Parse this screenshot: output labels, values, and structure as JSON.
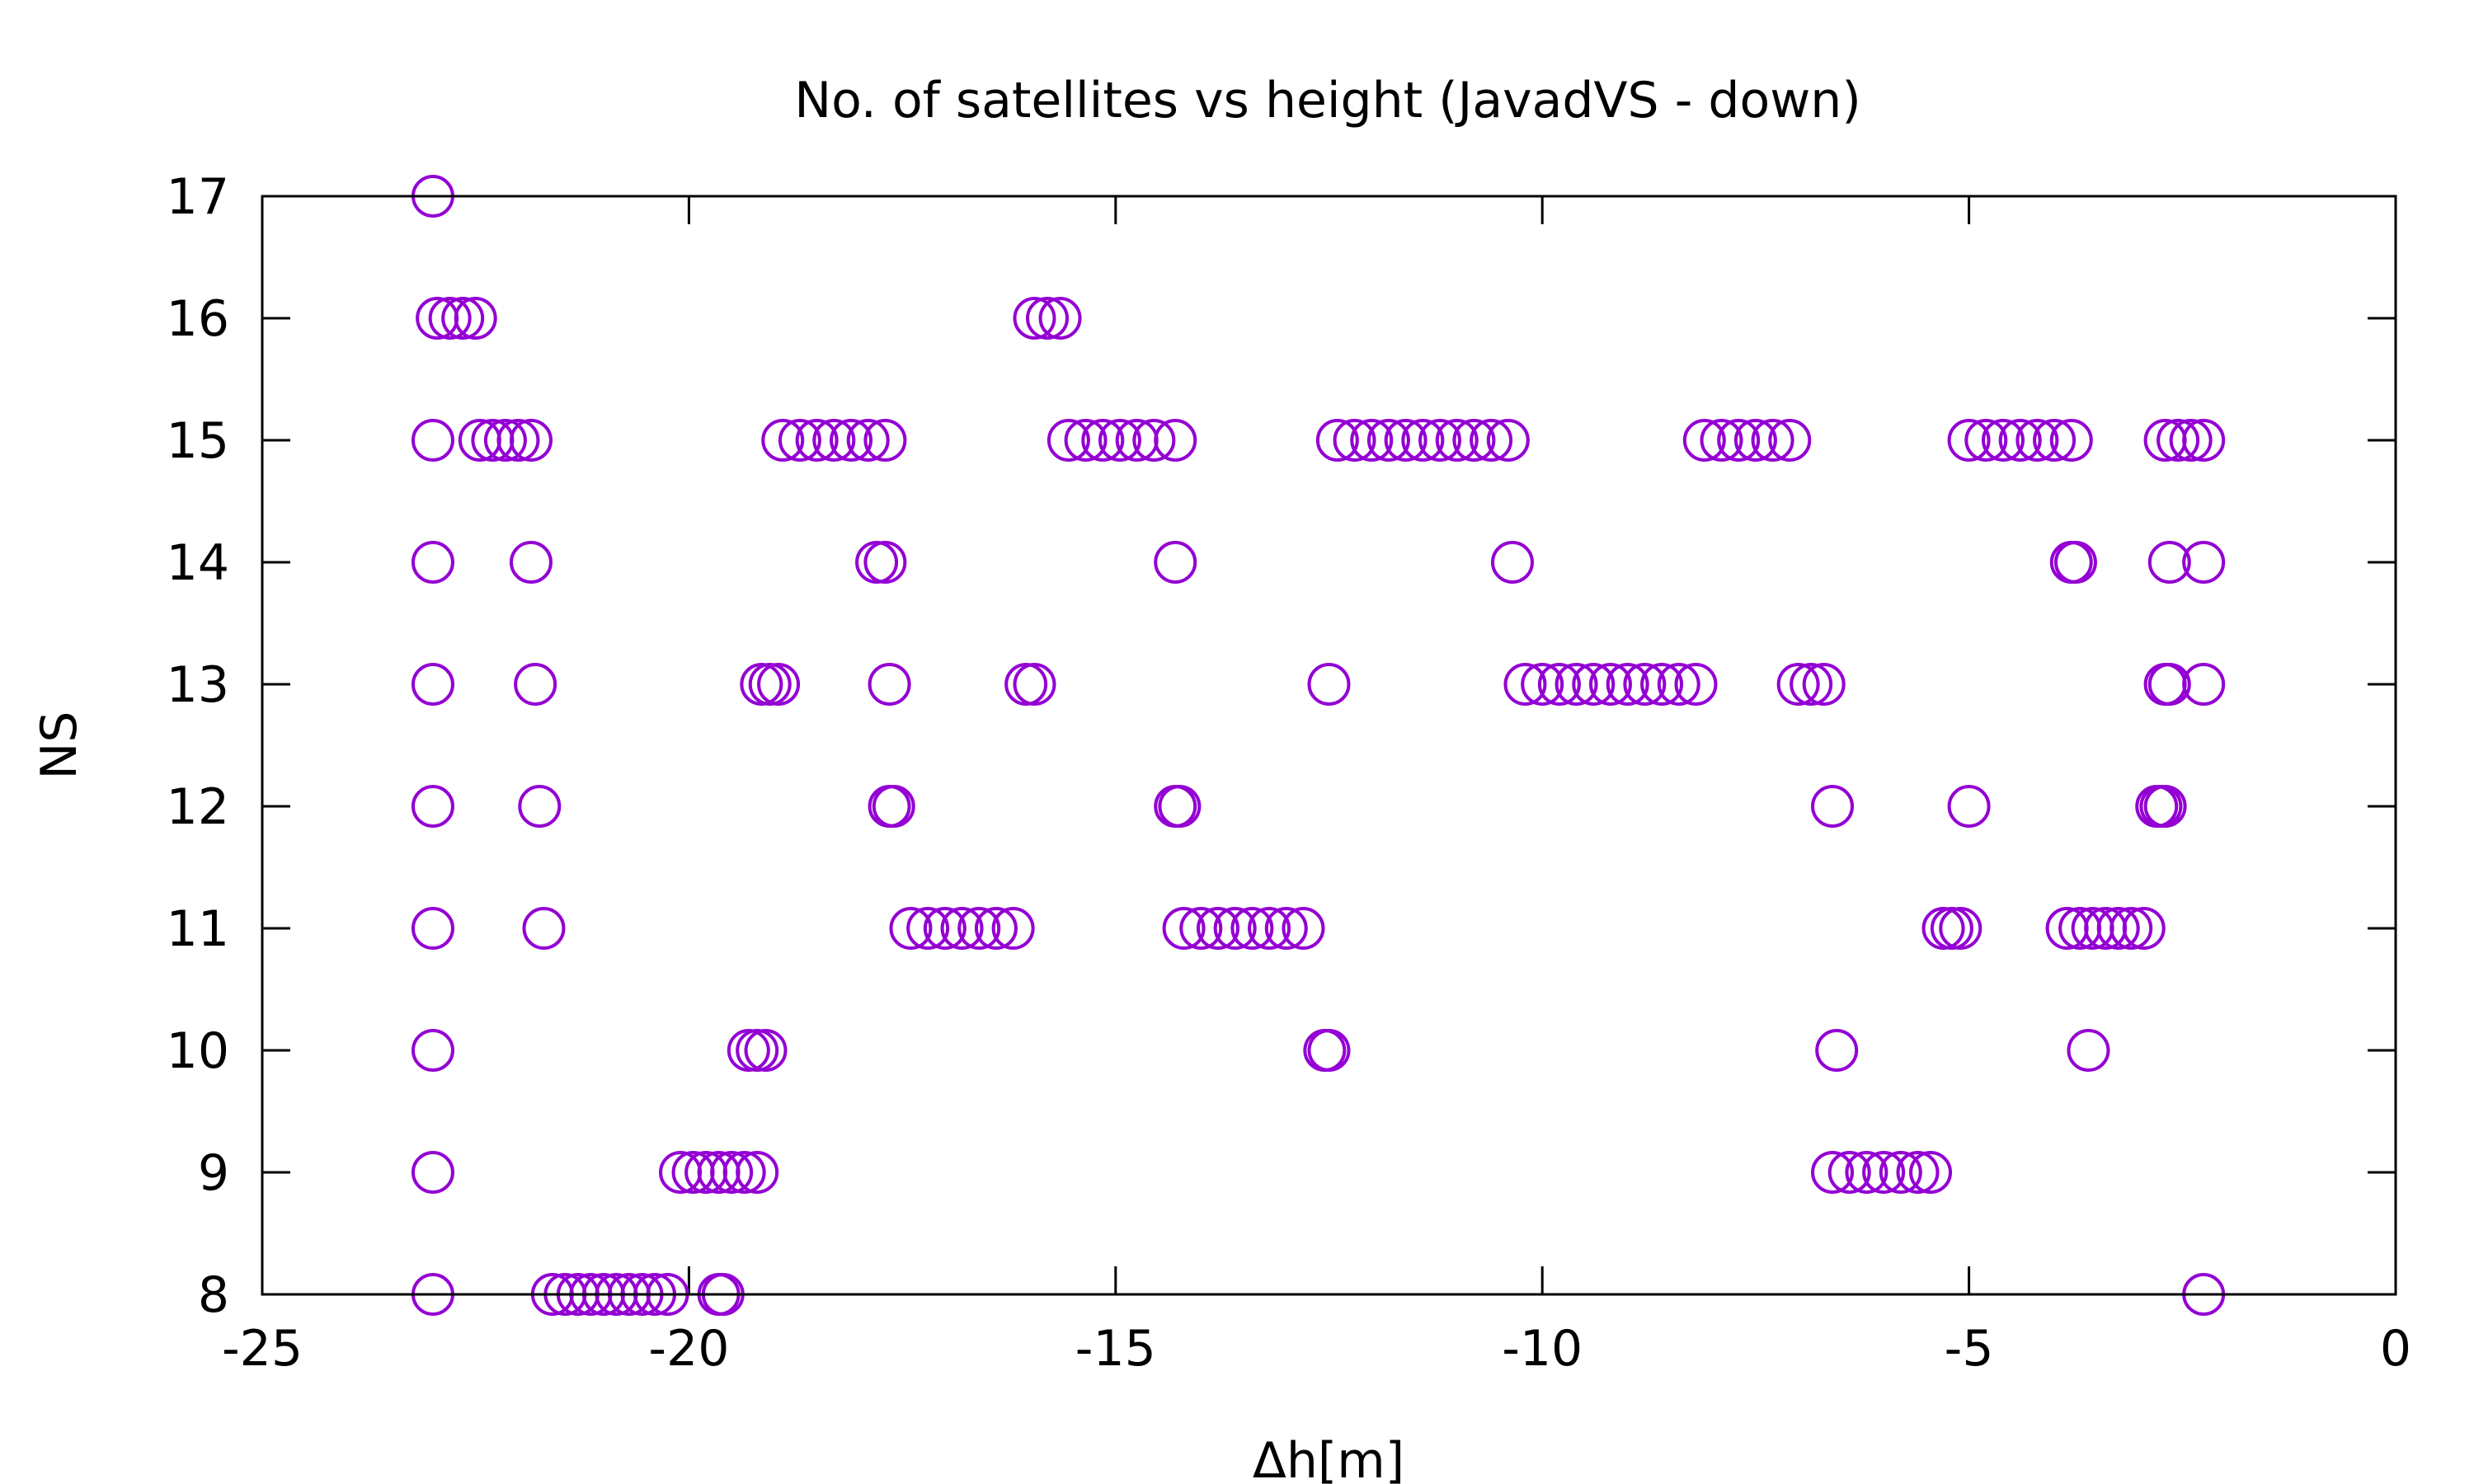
{
  "chart_data": {
    "type": "scatter",
    "title": "No. of satellites vs height (JavadVS - down)",
    "xlabel": "Δh[m]",
    "ylabel": "NS",
    "xlim": [
      -25,
      0
    ],
    "ylim": [
      8,
      17
    ],
    "xticks": [
      -25,
      -20,
      -15,
      -10,
      -5,
      0
    ],
    "yticks": [
      8,
      9,
      10,
      11,
      12,
      13,
      14,
      15,
      16,
      17
    ],
    "grid": false,
    "legend": "none",
    "marker": "open-circle",
    "color": "#9400D3",
    "series": [
      {
        "points": [
          [
            -23.0,
            17
          ],
          [
            -22.95,
            16
          ],
          [
            -22.8,
            16
          ],
          [
            -22.65,
            16
          ],
          [
            -22.5,
            16
          ],
          [
            -15.95,
            16
          ],
          [
            -15.8,
            16
          ],
          [
            -15.65,
            16
          ],
          [
            -23.0,
            15
          ],
          [
            -22.45,
            15
          ],
          [
            -22.3,
            15
          ],
          [
            -22.15,
            15
          ],
          [
            -22.0,
            15
          ],
          [
            -21.85,
            15
          ],
          [
            -18.9,
            15
          ],
          [
            -18.7,
            15
          ],
          [
            -18.5,
            15
          ],
          [
            -18.3,
            15
          ],
          [
            -18.1,
            15
          ],
          [
            -17.9,
            15
          ],
          [
            -17.7,
            15
          ],
          [
            -15.55,
            15
          ],
          [
            -15.35,
            15
          ],
          [
            -15.15,
            15
          ],
          [
            -14.95,
            15
          ],
          [
            -14.75,
            15
          ],
          [
            -14.55,
            15
          ],
          [
            -14.3,
            15
          ],
          [
            -12.4,
            15
          ],
          [
            -12.2,
            15
          ],
          [
            -12.0,
            15
          ],
          [
            -11.8,
            15
          ],
          [
            -11.6,
            15
          ],
          [
            -11.4,
            15
          ],
          [
            -11.2,
            15
          ],
          [
            -11.0,
            15
          ],
          [
            -10.8,
            15
          ],
          [
            -10.6,
            15
          ],
          [
            -10.4,
            15
          ],
          [
            -8.1,
            15
          ],
          [
            -7.9,
            15
          ],
          [
            -7.7,
            15
          ],
          [
            -7.5,
            15
          ],
          [
            -7.3,
            15
          ],
          [
            -7.1,
            15
          ],
          [
            -5.0,
            15
          ],
          [
            -4.8,
            15
          ],
          [
            -4.6,
            15
          ],
          [
            -4.4,
            15
          ],
          [
            -4.2,
            15
          ],
          [
            -4.0,
            15
          ],
          [
            -3.8,
            15
          ],
          [
            -2.7,
            15
          ],
          [
            -2.55,
            15
          ],
          [
            -2.4,
            15
          ],
          [
            -2.25,
            15
          ],
          [
            -23.0,
            14
          ],
          [
            -21.85,
            14
          ],
          [
            -17.8,
            14
          ],
          [
            -17.7,
            14
          ],
          [
            -14.3,
            14
          ],
          [
            -10.35,
            14
          ],
          [
            -3.8,
            14
          ],
          [
            -3.75,
            14
          ],
          [
            -2.65,
            14
          ],
          [
            -2.25,
            14
          ],
          [
            -23.0,
            13
          ],
          [
            -21.8,
            13
          ],
          [
            -19.15,
            13
          ],
          [
            -19.05,
            13
          ],
          [
            -18.95,
            13
          ],
          [
            -17.65,
            13
          ],
          [
            -16.05,
            13
          ],
          [
            -15.95,
            13
          ],
          [
            -12.5,
            13
          ],
          [
            -10.2,
            13
          ],
          [
            -10.0,
            13
          ],
          [
            -9.8,
            13
          ],
          [
            -9.6,
            13
          ],
          [
            -9.4,
            13
          ],
          [
            -9.2,
            13
          ],
          [
            -9.0,
            13
          ],
          [
            -8.8,
            13
          ],
          [
            -8.6,
            13
          ],
          [
            -8.4,
            13
          ],
          [
            -8.2,
            13
          ],
          [
            -7.0,
            13
          ],
          [
            -6.85,
            13
          ],
          [
            -6.7,
            13
          ],
          [
            -2.7,
            13
          ],
          [
            -2.65,
            13
          ],
          [
            -2.25,
            13
          ],
          [
            -23.0,
            12
          ],
          [
            -21.75,
            12
          ],
          [
            -17.65,
            12
          ],
          [
            -17.6,
            12
          ],
          [
            -14.3,
            12
          ],
          [
            -14.25,
            12
          ],
          [
            -6.6,
            12
          ],
          [
            -5.0,
            12
          ],
          [
            -2.8,
            12
          ],
          [
            -2.75,
            12
          ],
          [
            -2.7,
            12
          ],
          [
            -23.0,
            11
          ],
          [
            -21.7,
            11
          ],
          [
            -17.4,
            11
          ],
          [
            -17.2,
            11
          ],
          [
            -17.0,
            11
          ],
          [
            -16.8,
            11
          ],
          [
            -16.6,
            11
          ],
          [
            -16.4,
            11
          ],
          [
            -16.2,
            11
          ],
          [
            -14.2,
            11
          ],
          [
            -14.0,
            11
          ],
          [
            -13.8,
            11
          ],
          [
            -13.6,
            11
          ],
          [
            -13.4,
            11
          ],
          [
            -13.2,
            11
          ],
          [
            -13.0,
            11
          ],
          [
            -12.8,
            11
          ],
          [
            -5.3,
            11
          ],
          [
            -5.2,
            11
          ],
          [
            -5.1,
            11
          ],
          [
            -3.85,
            11
          ],
          [
            -3.7,
            11
          ],
          [
            -3.55,
            11
          ],
          [
            -3.4,
            11
          ],
          [
            -3.25,
            11
          ],
          [
            -3.1,
            11
          ],
          [
            -2.95,
            11
          ],
          [
            -23.0,
            10
          ],
          [
            -19.3,
            10
          ],
          [
            -19.2,
            10
          ],
          [
            -19.1,
            10
          ],
          [
            -12.55,
            10
          ],
          [
            -12.5,
            10
          ],
          [
            -6.55,
            10
          ],
          [
            -3.6,
            10
          ],
          [
            -23.0,
            9
          ],
          [
            -20.1,
            9
          ],
          [
            -19.95,
            9
          ],
          [
            -19.8,
            9
          ],
          [
            -19.65,
            9
          ],
          [
            -19.5,
            9
          ],
          [
            -19.35,
            9
          ],
          [
            -19.2,
            9
          ],
          [
            -6.6,
            9
          ],
          [
            -6.4,
            9
          ],
          [
            -6.2,
            9
          ],
          [
            -6.0,
            9
          ],
          [
            -5.8,
            9
          ],
          [
            -5.6,
            9
          ],
          [
            -5.45,
            9
          ],
          [
            -23.0,
            8
          ],
          [
            -21.6,
            8
          ],
          [
            -21.45,
            8
          ],
          [
            -21.3,
            8
          ],
          [
            -21.15,
            8
          ],
          [
            -21.0,
            8
          ],
          [
            -20.85,
            8
          ],
          [
            -20.7,
            8
          ],
          [
            -20.55,
            8
          ],
          [
            -20.4,
            8
          ],
          [
            -20.25,
            8
          ],
          [
            -19.65,
            8
          ],
          [
            -19.6,
            8
          ],
          [
            -2.25,
            8
          ]
        ]
      }
    ]
  }
}
